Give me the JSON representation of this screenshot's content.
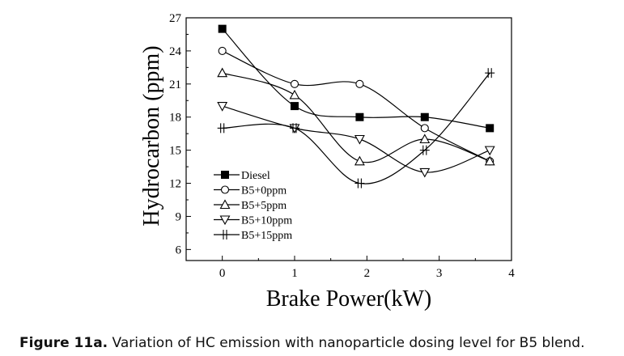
{
  "caption": {
    "label": "Figure 11a.",
    "text": " Variation of HC emission with nanoparticle dosing level for B5 blend."
  },
  "chart_data": {
    "type": "line",
    "title": "",
    "xlabel": "Brake Power(kW)",
    "ylabel": "Hydrocarbon (ppm)",
    "xlim": [
      -0.5,
      4
    ],
    "ylim": [
      5,
      27
    ],
    "xticks": [
      0,
      1,
      2,
      3,
      4
    ],
    "yticks": [
      6,
      9,
      12,
      15,
      18,
      21,
      24,
      27
    ],
    "grid": false,
    "legend_position": "lower-left",
    "x": [
      0,
      1,
      1.9,
      2.8,
      3.7
    ],
    "series": [
      {
        "name": "Diesel",
        "marker": "filled-square",
        "values": [
          26,
          19,
          18,
          18,
          17
        ]
      },
      {
        "name": "B5+0ppm",
        "marker": "open-circle",
        "values": [
          24,
          21,
          21,
          17,
          14
        ]
      },
      {
        "name": "B5+5ppm",
        "marker": "open-triangle-up",
        "values": [
          22,
          20,
          14,
          16,
          14
        ]
      },
      {
        "name": "B5+10ppm",
        "marker": "open-triangle-down",
        "values": [
          19,
          17,
          16,
          13,
          15
        ]
      },
      {
        "name": "B5+15ppm",
        "marker": "double-cross",
        "values": [
          17,
          17,
          12,
          15,
          22
        ]
      }
    ],
    "colors": {
      "line": "#000000",
      "background": "#ffffff"
    }
  }
}
